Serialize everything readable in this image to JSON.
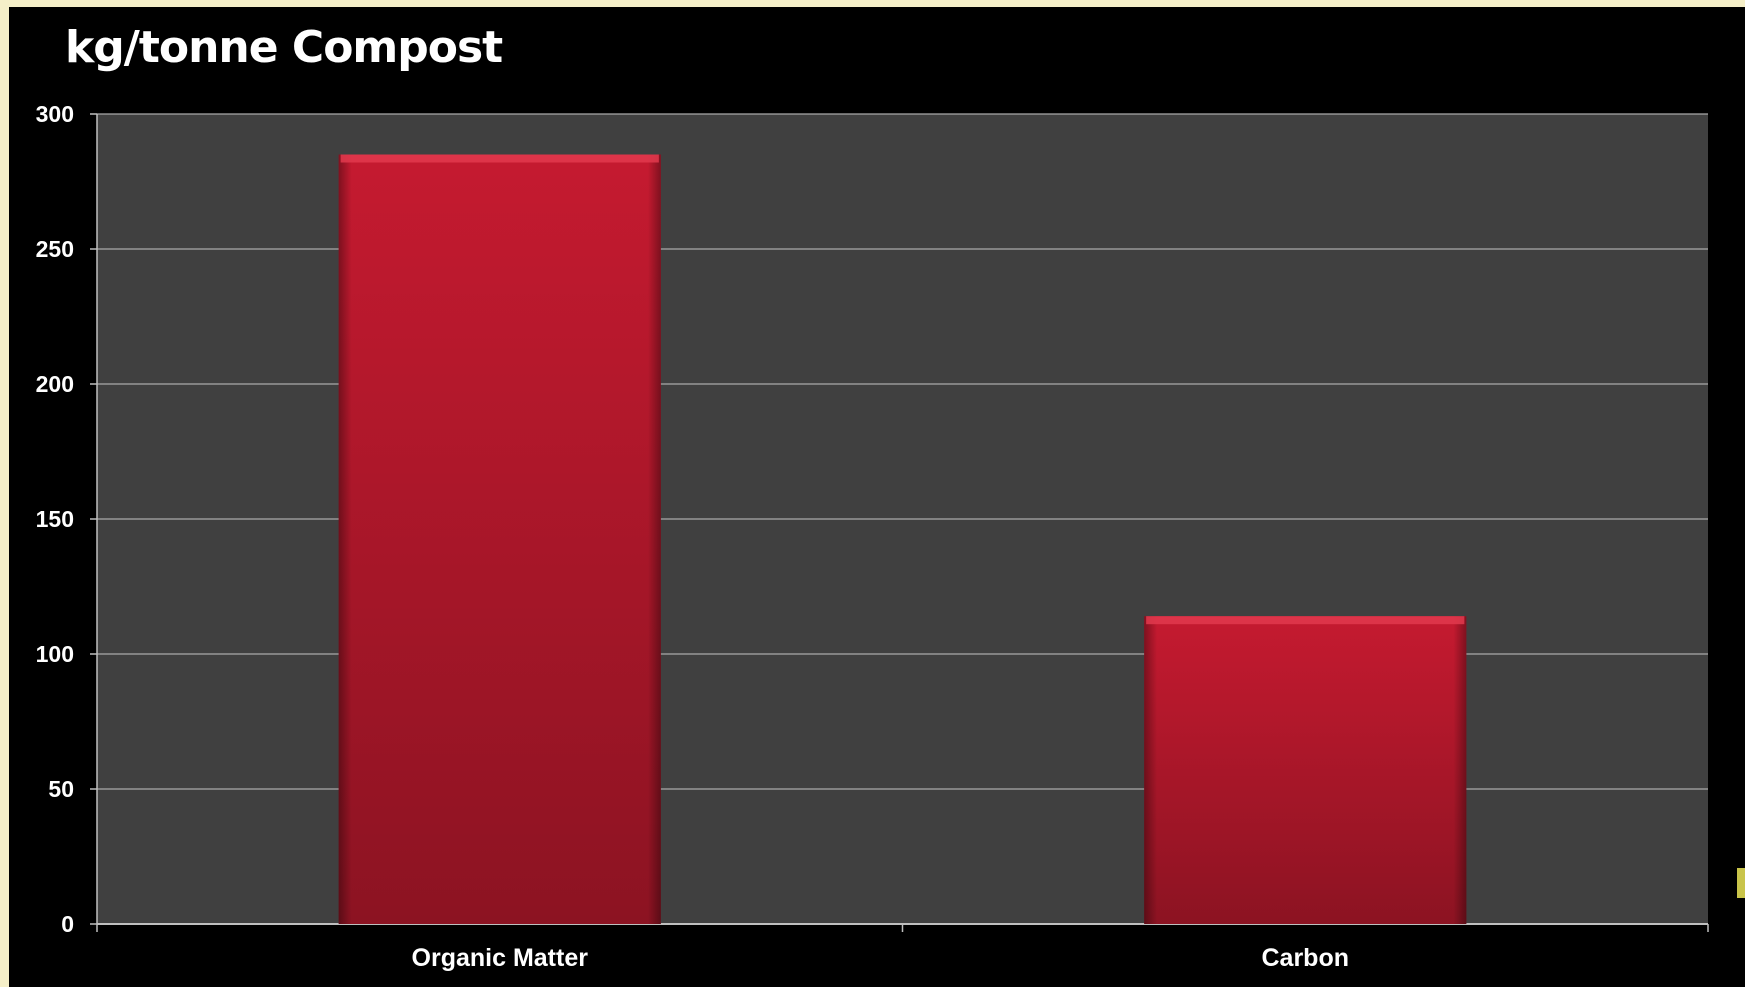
{
  "chart_data": {
    "type": "bar",
    "title": "kg/tonne Compost",
    "xlabel": "",
    "ylabel": "",
    "categories": [
      "Organic Matter",
      "Carbon"
    ],
    "values": [
      285,
      114
    ],
    "ylim": [
      0,
      300
    ],
    "yticks": [
      0,
      50,
      100,
      150,
      200,
      250,
      300
    ],
    "grid": true,
    "legend": "none",
    "colors": {
      "bar_top": "#c51a30",
      "bar_bottom": "#8c1322",
      "plot_background": "#404040",
      "page_background": "#000000",
      "gridline": "#a9a9a9"
    }
  }
}
